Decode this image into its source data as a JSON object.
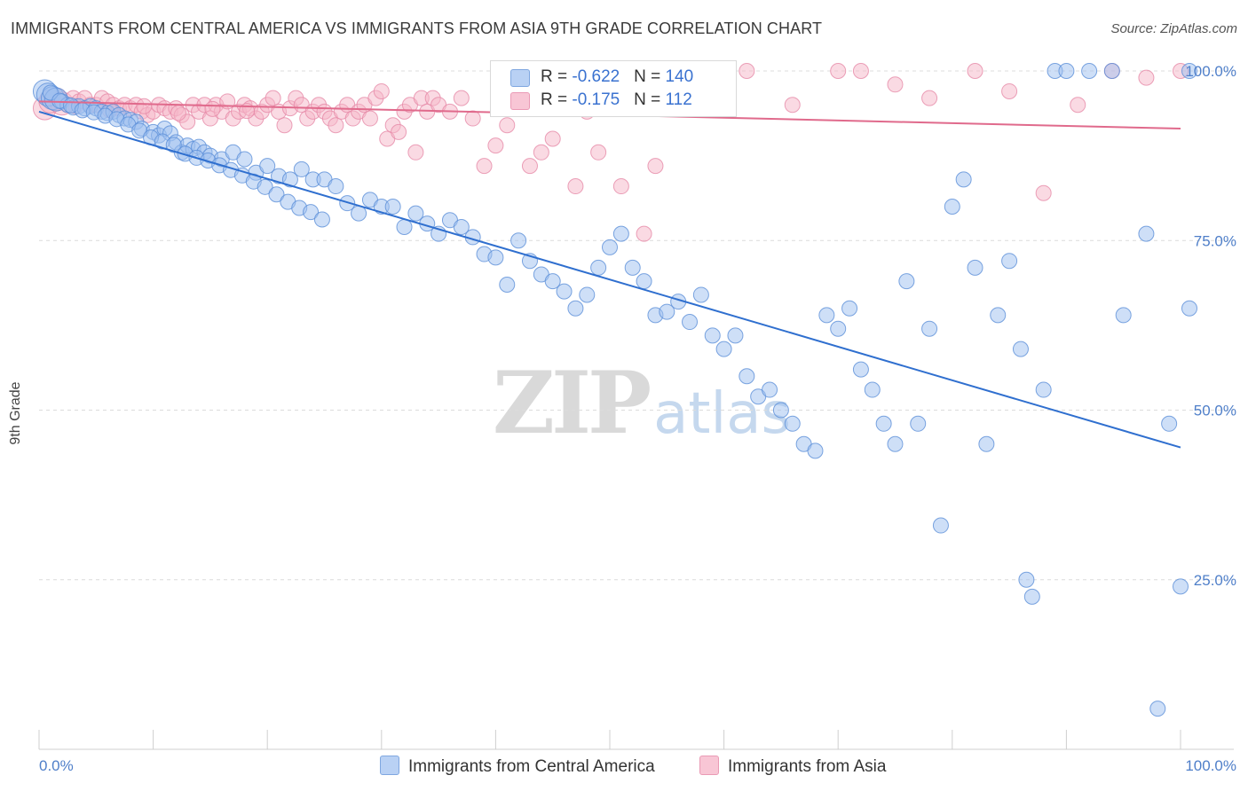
{
  "header": {
    "title": "IMMIGRANTS FROM CENTRAL AMERICA VS IMMIGRANTS FROM ASIA 9TH GRADE CORRELATION CHART",
    "source": "Source: ZipAtlas.com"
  },
  "watermark": {
    "zip": "ZIP",
    "atlas": "atlas"
  },
  "legend_top": {
    "rows": [
      {
        "r_label": "R = ",
        "r_value": "-0.622",
        "n_label": "N = ",
        "n_value": "140"
      },
      {
        "r_label": "R = ",
        "r_value": "-0.175",
        "n_label": "N = ",
        "n_value": "112"
      }
    ]
  },
  "legend_bottom": {
    "items": [
      {
        "label": "Immigrants from Central America"
      },
      {
        "label": "Immigrants from Asia"
      }
    ]
  },
  "chart_data": {
    "type": "scatter",
    "title": "IMMIGRANTS FROM CENTRAL AMERICA VS IMMIGRANTS FROM ASIA 9TH GRADE CORRELATION CHART",
    "xlabel": "",
    "ylabel": "9th Grade",
    "xlim": [
      0,
      100
    ],
    "ylim": [
      0,
      100
    ],
    "x_tick_labels": [
      "0.0%",
      "100.0%"
    ],
    "y_ticks": [
      25,
      50,
      75,
      100
    ],
    "y_tick_labels": [
      "25.0%",
      "50.0%",
      "75.0%",
      "100.0%"
    ],
    "grid": true,
    "legend_position": "bottom",
    "series": [
      {
        "name": "Immigrants from Central America",
        "color": "#9dbff0",
        "stroke": "#5b8fd8",
        "line_color": "#2f6fcf",
        "R": -0.622,
        "N": 140,
        "trend": {
          "x": [
            0,
            100
          ],
          "y": [
            94,
            44.5
          ]
        },
        "points": [
          [
            0.5,
            97
          ],
          [
            0.8,
            96.5
          ],
          [
            1.2,
            96
          ],
          [
            1.5,
            95.8
          ],
          [
            2,
            95.5
          ],
          [
            2.5,
            95
          ],
          [
            3,
            94.6
          ],
          [
            3.5,
            94.8
          ],
          [
            4,
            94.5
          ],
          [
            4.5,
            94.8
          ],
          [
            5,
            94.5
          ],
          [
            5.5,
            94
          ],
          [
            6,
            93.8
          ],
          [
            6.5,
            94
          ],
          [
            7,
            93.5
          ],
          [
            7.5,
            93
          ],
          [
            8,
            92.8
          ],
          [
            8.5,
            92.5
          ],
          [
            9,
            91.5
          ],
          [
            10,
            91
          ],
          [
            10.5,
            90.5
          ],
          [
            11,
            91.5
          ],
          [
            11.5,
            90.8
          ],
          [
            12,
            89.5
          ],
          [
            12.5,
            88
          ],
          [
            13,
            89
          ],
          [
            13.5,
            88.5
          ],
          [
            14,
            88.8
          ],
          [
            14.5,
            88
          ],
          [
            15,
            87.5
          ],
          [
            16,
            87
          ],
          [
            17,
            88
          ],
          [
            18,
            87
          ],
          [
            19,
            85
          ],
          [
            20,
            86
          ],
          [
            21,
            84.5
          ],
          [
            22,
            84
          ],
          [
            23,
            85.5
          ],
          [
            24,
            84
          ],
          [
            25,
            84
          ],
          [
            26,
            83
          ],
          [
            27,
            80.5
          ],
          [
            28,
            79
          ],
          [
            29,
            81
          ],
          [
            30,
            80
          ],
          [
            31,
            80
          ],
          [
            32,
            77
          ],
          [
            33,
            79
          ],
          [
            34,
            77.5
          ],
          [
            35,
            76
          ],
          [
            36,
            78
          ],
          [
            37,
            77
          ],
          [
            38,
            75.5
          ],
          [
            39,
            73
          ],
          [
            40,
            72.5
          ],
          [
            41,
            68.5
          ],
          [
            42,
            75
          ],
          [
            43,
            72
          ],
          [
            44,
            70
          ],
          [
            45,
            69
          ],
          [
            46,
            67.5
          ],
          [
            47,
            65
          ],
          [
            48,
            67
          ],
          [
            49,
            71
          ],
          [
            50,
            74
          ],
          [
            51,
            76
          ],
          [
            52,
            71
          ],
          [
            53,
            69
          ],
          [
            54,
            64
          ],
          [
            55,
            64.5
          ],
          [
            56,
            66
          ],
          [
            57,
            63
          ],
          [
            58,
            67
          ],
          [
            59,
            61
          ],
          [
            60,
            59
          ],
          [
            61,
            61
          ],
          [
            62,
            55
          ],
          [
            63,
            52
          ],
          [
            64,
            53
          ],
          [
            65,
            50
          ],
          [
            66,
            48
          ],
          [
            67,
            45
          ],
          [
            68,
            44
          ],
          [
            69,
            64
          ],
          [
            70,
            62
          ],
          [
            71,
            65
          ],
          [
            72,
            56
          ],
          [
            73,
            53
          ],
          [
            74,
            48
          ],
          [
            75,
            45
          ],
          [
            76,
            69
          ],
          [
            77,
            48
          ],
          [
            78,
            62
          ],
          [
            79,
            33
          ],
          [
            80,
            80
          ],
          [
            81,
            84
          ],
          [
            82,
            71
          ],
          [
            83,
            45
          ],
          [
            84,
            64
          ],
          [
            85,
            72
          ],
          [
            86,
            59
          ],
          [
            86.5,
            25
          ],
          [
            87,
            22.5
          ],
          [
            88,
            53
          ],
          [
            89,
            100
          ],
          [
            90,
            100
          ],
          [
            92,
            100
          ],
          [
            94,
            100
          ],
          [
            95,
            64
          ],
          [
            97,
            76
          ],
          [
            98,
            6
          ],
          [
            99,
            48
          ],
          [
            100,
            24
          ],
          [
            102,
            100
          ],
          [
            103,
            65
          ],
          [
            1,
            96.8
          ],
          [
            1.8,
            95.6
          ],
          [
            2.8,
            94.9
          ],
          [
            3.8,
            94.2
          ],
          [
            4.8,
            93.9
          ],
          [
            5.8,
            93.4
          ],
          [
            6.8,
            92.9
          ],
          [
            7.8,
            92.1
          ],
          [
            8.8,
            91.2
          ],
          [
            9.8,
            90.2
          ],
          [
            10.8,
            89.6
          ],
          [
            11.8,
            89.1
          ],
          [
            12.8,
            87.8
          ],
          [
            13.8,
            87.2
          ],
          [
            14.8,
            86.8
          ],
          [
            15.8,
            86.1
          ],
          [
            16.8,
            85.4
          ],
          [
            17.8,
            84.6
          ],
          [
            18.8,
            83.7
          ],
          [
            19.8,
            82.9
          ],
          [
            20.8,
            81.8
          ],
          [
            21.8,
            80.7
          ],
          [
            22.8,
            79.8
          ],
          [
            23.8,
            79.2
          ],
          [
            24.8,
            78.1
          ]
        ]
      },
      {
        "name": "Immigrants from Asia",
        "color": "#f5b5c8",
        "stroke": "#e68aa8",
        "line_color": "#e06a8c",
        "R": -0.175,
        "N": 112,
        "trend": {
          "x": [
            0,
            100
          ],
          "y": [
            95.5,
            91.5
          ]
        },
        "points": [
          [
            0.5,
            94.5
          ],
          [
            1,
            95.5
          ],
          [
            1.5,
            95.8
          ],
          [
            2,
            95.2
          ],
          [
            2.5,
            95
          ],
          [
            3,
            96
          ],
          [
            3.5,
            95.5
          ],
          [
            4,
            96
          ],
          [
            4.5,
            95
          ],
          [
            5,
            95
          ],
          [
            5.5,
            96
          ],
          [
            6,
            95.5
          ],
          [
            6.5,
            95
          ],
          [
            7,
            94.5
          ],
          [
            7.5,
            95
          ],
          [
            8,
            94.5
          ],
          [
            8.5,
            95
          ],
          [
            9,
            94
          ],
          [
            9.5,
            93.5
          ],
          [
            10,
            94
          ],
          [
            10.5,
            95
          ],
          [
            11,
            94.5
          ],
          [
            11.5,
            94
          ],
          [
            12,
            94.5
          ],
          [
            12.5,
            93.5
          ],
          [
            13,
            92.5
          ],
          [
            13.5,
            95
          ],
          [
            14,
            94
          ],
          [
            14.5,
            95
          ],
          [
            15,
            93
          ],
          [
            15.5,
            95
          ],
          [
            16,
            94
          ],
          [
            16.5,
            95.5
          ],
          [
            17,
            93
          ],
          [
            17.5,
            94
          ],
          [
            18,
            95
          ],
          [
            18.5,
            94.5
          ],
          [
            19,
            93
          ],
          [
            19.5,
            94
          ],
          [
            20,
            95
          ],
          [
            20.5,
            96
          ],
          [
            21,
            94
          ],
          [
            21.5,
            92
          ],
          [
            22,
            94.5
          ],
          [
            22.5,
            96
          ],
          [
            23,
            95
          ],
          [
            23.5,
            93
          ],
          [
            24,
            94
          ],
          [
            24.5,
            95
          ],
          [
            25,
            94
          ],
          [
            25.5,
            93
          ],
          [
            26,
            92
          ],
          [
            26.5,
            94
          ],
          [
            27,
            95
          ],
          [
            27.5,
            93
          ],
          [
            28,
            94
          ],
          [
            28.5,
            95
          ],
          [
            29,
            93
          ],
          [
            29.5,
            96
          ],
          [
            30,
            97
          ],
          [
            30.5,
            90
          ],
          [
            31,
            92
          ],
          [
            31.5,
            91
          ],
          [
            32,
            94
          ],
          [
            32.5,
            95
          ],
          [
            33,
            88
          ],
          [
            33.5,
            96
          ],
          [
            34,
            94
          ],
          [
            34.5,
            96
          ],
          [
            35,
            95
          ],
          [
            36,
            94
          ],
          [
            37,
            96
          ],
          [
            38,
            93
          ],
          [
            39,
            86
          ],
          [
            40,
            89
          ],
          [
            41,
            92
          ],
          [
            42,
            96
          ],
          [
            43,
            86
          ],
          [
            44,
            88
          ],
          [
            45,
            90
          ],
          [
            46,
            95
          ],
          [
            47,
            83
          ],
          [
            48,
            94
          ],
          [
            49,
            88
          ],
          [
            50,
            100
          ],
          [
            51,
            83
          ],
          [
            52,
            97
          ],
          [
            53,
            76
          ],
          [
            54,
            86
          ],
          [
            55,
            100
          ],
          [
            57,
            97
          ],
          [
            58,
            100
          ],
          [
            60,
            100
          ],
          [
            62,
            100
          ],
          [
            66,
            95
          ],
          [
            70,
            100
          ],
          [
            72,
            100
          ],
          [
            75,
            98
          ],
          [
            78,
            96
          ],
          [
            82,
            100
          ],
          [
            85,
            97
          ],
          [
            88,
            82
          ],
          [
            91,
            95
          ],
          [
            94,
            100
          ],
          [
            97,
            99
          ],
          [
            100,
            100
          ],
          [
            3.2,
            94.8
          ],
          [
            6.2,
            94.2
          ],
          [
            9.2,
            94.8
          ],
          [
            12.2,
            93.8
          ],
          [
            15.2,
            94.4
          ],
          [
            18.2,
            94.1
          ]
        ]
      }
    ]
  }
}
